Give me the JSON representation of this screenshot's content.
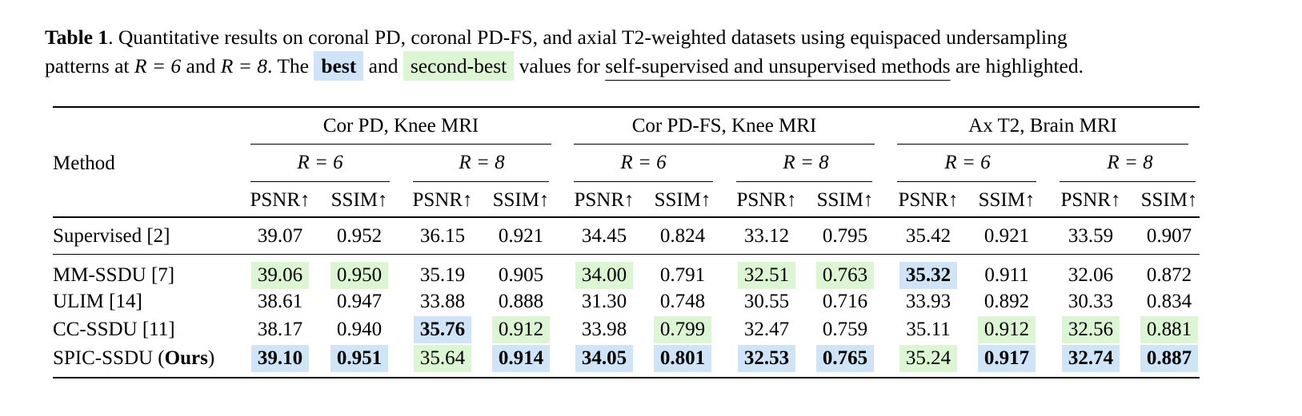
{
  "caption": {
    "label": "Table 1",
    "line1": ". Quantitative results on coronal PD, coronal PD-FS, and axial T2-weighted datasets using equispaced undersampling",
    "line2_a": "patterns at ",
    "r6": "R = 6",
    "and1": " and ",
    "r8": "R = 8",
    "line2_b": ". The ",
    "best": "best",
    "and2": " and ",
    "second": "second-best",
    "line2_c": " values for ",
    "underlined": "self-supervised and unsupervised methods",
    "line2_d": " are highlighted."
  },
  "table": {
    "method_header": "Method",
    "groups": [
      "Cor PD, Knee MRI",
      "Cor PD-FS, Knee MRI",
      "Ax T2, Brain MRI"
    ],
    "r_labels": [
      "R = 6",
      "R = 8",
      "R = 6",
      "R = 8",
      "R = 6",
      "R = 8"
    ],
    "metrics": [
      "PSNR↑",
      "SSIM↑",
      "PSNR↑",
      "SSIM↑",
      "PSNR↑",
      "SSIM↑",
      "PSNR↑",
      "SSIM↑",
      "PSNR↑",
      "SSIM↑",
      "PSNR↑",
      "SSIM↑"
    ],
    "rows": [
      {
        "method": "Supervised [2]",
        "method_bold": "",
        "method_suffix": "",
        "values": [
          "39.07",
          "0.952",
          "36.15",
          "0.921",
          "34.45",
          "0.824",
          "33.12",
          "0.795",
          "35.42",
          "0.921",
          "33.59",
          "0.907"
        ],
        "marks": [
          "",
          "",
          "",
          "",
          "",
          "",
          "",
          "",
          "",
          "",
          "",
          ""
        ]
      },
      {
        "method": "MM-SSDU [7]",
        "method_bold": "",
        "method_suffix": "",
        "values": [
          "39.06",
          "0.950",
          "35.19",
          "0.905",
          "34.00",
          "0.791",
          "32.51",
          "0.763",
          "35.32",
          "0.911",
          "32.06",
          "0.872"
        ],
        "marks": [
          "second",
          "second",
          "",
          "",
          "second",
          "",
          "second",
          "second",
          "best",
          "",
          "",
          ""
        ]
      },
      {
        "method": "ULIM [14]",
        "method_bold": "",
        "method_suffix": "",
        "values": [
          "38.61",
          "0.947",
          "33.88",
          "0.888",
          "31.30",
          "0.748",
          "30.55",
          "0.716",
          "33.93",
          "0.892",
          "30.33",
          "0.834"
        ],
        "marks": [
          "",
          "",
          "",
          "",
          "",
          "",
          "",
          "",
          "",
          "",
          "",
          ""
        ]
      },
      {
        "method": "CC-SSDU [11]",
        "method_bold": "",
        "method_suffix": "",
        "values": [
          "38.17",
          "0.940",
          "35.76",
          "0.912",
          "33.98",
          "0.799",
          "32.47",
          "0.759",
          "35.11",
          "0.912",
          "32.56",
          "0.881"
        ],
        "marks": [
          "",
          "",
          "best",
          "second",
          "",
          "second",
          "",
          "",
          "",
          "second",
          "second",
          "second"
        ]
      },
      {
        "method": "SPIC-SSDU (",
        "method_bold": "Ours",
        "method_suffix": ")",
        "values": [
          "39.10",
          "0.951",
          "35.64",
          "0.914",
          "34.05",
          "0.801",
          "32.53",
          "0.765",
          "35.24",
          "0.917",
          "32.74",
          "0.887"
        ],
        "marks": [
          "best",
          "best",
          "second",
          "best",
          "best",
          "best",
          "best",
          "best",
          "second",
          "best",
          "best",
          "best"
        ]
      }
    ]
  },
  "colors": {
    "best": "#cfe4f7",
    "second": "#dcf5d2"
  }
}
